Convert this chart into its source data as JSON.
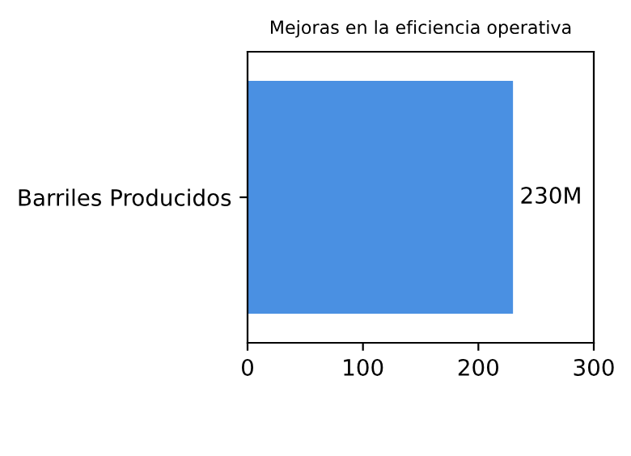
{
  "chart_data": {
    "type": "bar",
    "orientation": "horizontal",
    "title": "Mejoras en la eficiencia operativa",
    "categories": [
      "Barriles Producidos"
    ],
    "values": [
      230
    ],
    "value_labels": [
      "230M"
    ],
    "color": "#4a90e2",
    "xlim": [
      0,
      300
    ],
    "xticks": [
      0,
      100,
      200,
      300
    ],
    "grid": false,
    "legend": false
  }
}
